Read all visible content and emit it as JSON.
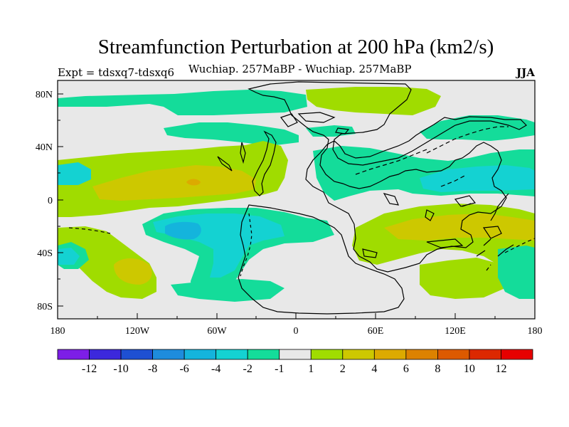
{
  "header": {
    "title": "Streamfunction Perturbation at 200 hPa (km2/s)",
    "experiment": "Expt = tdsxq7-tdsxq6",
    "subtitle": "Wuchiap. 257MaBP - Wuchiap. 257MaBP",
    "season": "JJA"
  },
  "axes": {
    "lat_ticks": [
      "80N",
      "40N",
      "0",
      "40S",
      "80S"
    ],
    "lat_values": [
      80,
      40,
      0,
      -40,
      -80
    ],
    "lon_ticks": [
      "180",
      "120W",
      "60W",
      "0",
      "60E",
      "120E",
      "180"
    ],
    "lon_values": [
      -180,
      -120,
      -60,
      0,
      60,
      120,
      180
    ]
  },
  "colorbar": {
    "colors": [
      "#7d1ee6",
      "#3c28dc",
      "#1e50d2",
      "#1e8cdc",
      "#14b4dc",
      "#14d2d2",
      "#14dc9a",
      "#e8e8e8",
      "#a0dc00",
      "#cdc800",
      "#dcaa00",
      "#dc8200",
      "#dc5a00",
      "#dc2800",
      "#e60000"
    ],
    "labels": [
      "-12",
      "-10",
      "-8",
      "-6",
      "-4",
      "-2",
      "-1",
      "1",
      "2",
      "4",
      "6",
      "8",
      "10",
      "12"
    ]
  },
  "palette": {
    "background": "#e8e8e8",
    "green": "#14dc9a",
    "cyan": "#14d2d2",
    "blue_cyan": "#14b4dc",
    "lime": "#a0dc00",
    "olive": "#cdc800",
    "orange": "#dcaa00"
  }
}
